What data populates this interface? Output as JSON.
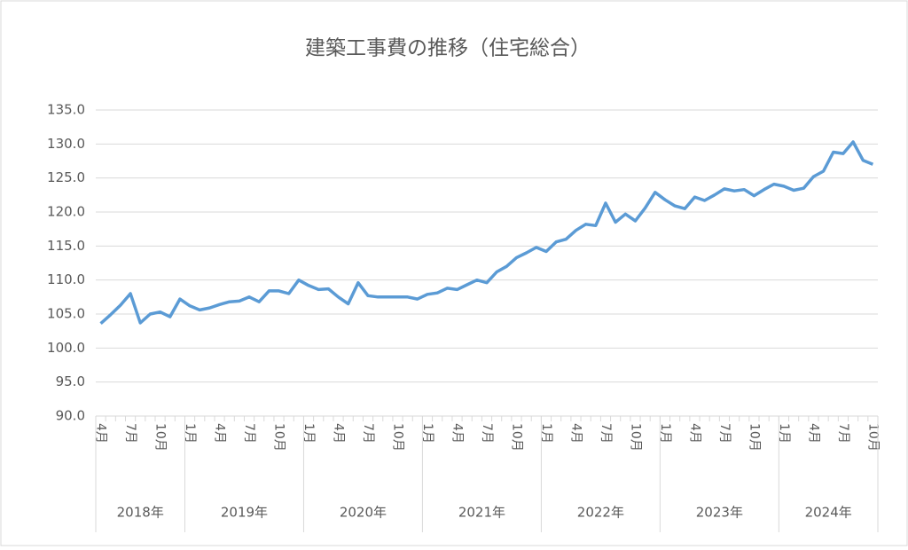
{
  "chart_data": {
    "type": "line",
    "title": "建築工事費の推移（住宅総合）",
    "categories": [
      "4月",
      null,
      null,
      "7月",
      null,
      null,
      "10月",
      null,
      null,
      "1月",
      null,
      null,
      "4月",
      null,
      null,
      "7月",
      null,
      null,
      "10月",
      null,
      null,
      "1月",
      null,
      null,
      "4月",
      null,
      null,
      "7月",
      null,
      null,
      "10月",
      null,
      null,
      "1月",
      null,
      null,
      "4月",
      null,
      null,
      "7月",
      null,
      null,
      "10月",
      null,
      null,
      "1月",
      null,
      null,
      "4月",
      null,
      null,
      "7月",
      null,
      null,
      "10月",
      null,
      null,
      "1月",
      null,
      null,
      "4月",
      null,
      null,
      "7月",
      null,
      null,
      "10月",
      null,
      null,
      "1月",
      null,
      null,
      "4月",
      null,
      null,
      "7月",
      null,
      null,
      "10月"
    ],
    "groups": [
      {
        "label": "2018年",
        "size": 9
      },
      {
        "label": "2019年",
        "size": 12
      },
      {
        "label": "2020年",
        "size": 12
      },
      {
        "label": "2021年",
        "size": 12
      },
      {
        "label": "2022年",
        "size": 12
      },
      {
        "label": "2023年",
        "size": 12
      },
      {
        "label": "2024年",
        "size": 10
      }
    ],
    "series": [
      {
        "name": "住宅総合",
        "color": "#5b9bd5",
        "values": [
          103.6,
          104.9,
          106.3,
          108.0,
          103.7,
          105.0,
          105.3,
          104.6,
          107.2,
          106.2,
          105.6,
          105.9,
          106.4,
          106.8,
          106.9,
          107.5,
          106.8,
          108.4,
          108.4,
          108.0,
          110.0,
          109.2,
          108.6,
          108.7,
          107.5,
          106.5,
          109.6,
          107.7,
          107.5,
          107.5,
          107.5,
          107.5,
          107.2,
          107.9,
          108.1,
          108.8,
          108.6,
          109.3,
          110.0,
          109.6,
          111.2,
          112.0,
          113.3,
          114.0,
          114.8,
          114.2,
          115.6,
          116.0,
          117.3,
          118.2,
          118.0,
          121.3,
          118.5,
          119.7,
          118.7,
          120.6,
          122.9,
          121.8,
          120.9,
          120.5,
          122.2,
          121.7,
          122.5,
          123.4,
          123.1,
          123.3,
          122.4,
          123.3,
          124.1,
          123.8,
          123.2,
          123.5,
          125.2,
          126.0,
          128.8,
          128.6,
          130.3,
          127.6,
          127.0
        ]
      }
    ],
    "ylim": [
      90,
      135
    ],
    "yticks": [
      {
        "value": 90,
        "label": "90.0"
      },
      {
        "value": 95,
        "label": "95.0"
      },
      {
        "value": 100,
        "label": "100.0"
      },
      {
        "value": 105,
        "label": "105.0"
      },
      {
        "value": 110,
        "label": "110.0"
      },
      {
        "value": 115,
        "label": "115.0"
      },
      {
        "value": 120,
        "label": "120.0"
      },
      {
        "value": 125,
        "label": "125.0"
      },
      {
        "value": 130,
        "label": "130.0"
      },
      {
        "value": 135,
        "label": "135.0"
      }
    ],
    "grid": true
  }
}
